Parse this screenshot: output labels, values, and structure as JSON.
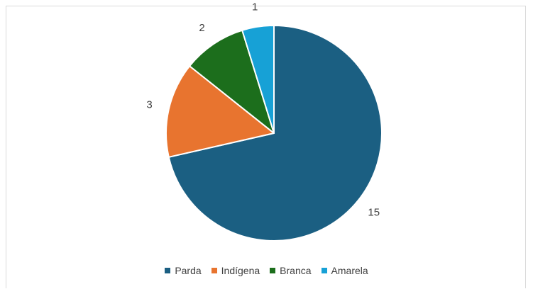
{
  "chart_data": {
    "type": "pie",
    "categories": [
      "Parda",
      "Indígena",
      "Branca",
      "Amarela"
    ],
    "values": [
      15,
      3,
      2,
      1
    ],
    "colors": [
      "#1b5f82",
      "#e8742f",
      "#1c6e1c",
      "#17a1d6"
    ],
    "data_labels": [
      "15",
      "3",
      "2",
      "1"
    ],
    "legend_position": "bottom",
    "start_angle": "top, clockwise"
  }
}
